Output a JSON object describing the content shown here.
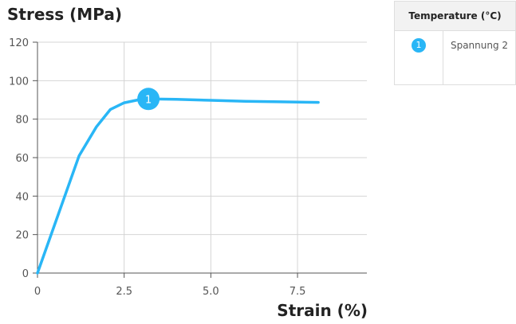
{
  "chart_data": {
    "type": "line",
    "xlabel": "Strain (%)",
    "ylabel": "Stress (MPa)",
    "xlim": [
      0,
      9.5
    ],
    "ylim": [
      0,
      120
    ],
    "x_ticks": [
      0,
      2.5,
      5.0,
      7.5
    ],
    "x_tick_labels": [
      "0",
      "2.5",
      "5.0",
      "7.5"
    ],
    "y_ticks": [
      0,
      20,
      40,
      60,
      80,
      100,
      120
    ],
    "y_tick_labels": [
      "0",
      "20",
      "40",
      "60",
      "80",
      "100",
      "120"
    ],
    "grid": true,
    "legend_title": "Temperature (°C)",
    "series": [
      {
        "name": "Spannung 2",
        "badge": "1",
        "color": "#29b6f6",
        "label_at": {
          "x": 3.2,
          "y": 90.5
        },
        "x": [
          0,
          1.2,
          1.7,
          2.1,
          2.5,
          2.9,
          3.2,
          4.0,
          5.0,
          6.0,
          7.0,
          8.1
        ],
        "y": [
          0,
          61,
          76,
          85,
          88.5,
          90,
          90.5,
          90.3,
          89.8,
          89.3,
          89,
          88.7
        ]
      }
    ]
  }
}
